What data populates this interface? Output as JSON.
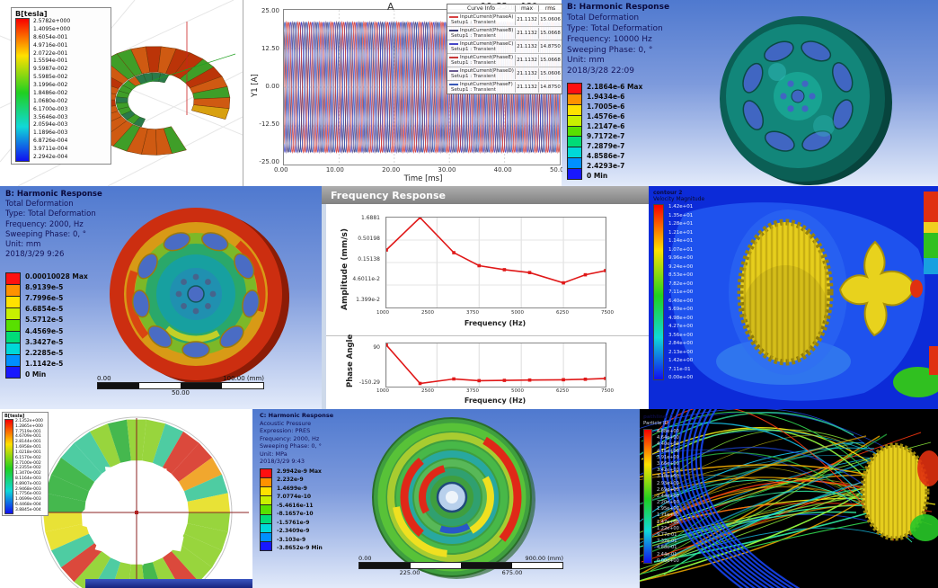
{
  "colors": {
    "ansys_bands": [
      "#ff1010",
      "#ff9100",
      "#ffe100",
      "#c8f000",
      "#58e000",
      "#00dc78",
      "#00d8d8",
      "#0090ff",
      "#1818ff"
    ],
    "stream_palette": [
      "#2ec84a",
      "#8ef03c",
      "#18c8f0",
      "#2050ff",
      "#ff3810",
      "#ffb400",
      "#f6f014",
      "#30e8a0"
    ],
    "viewport_top": "#4f79cf",
    "viewport_bottom": "#e2eafa",
    "cfd_background": "#0c2bd8"
  },
  "panels": {
    "maxwell_torus": {
      "legend_title": "B[tesla]",
      "legend_values": [
        "2.5782e+000",
        "1.4095e+000",
        "8.6054e-001",
        "4.9716e-001",
        "2.0722e-001",
        "1.5594e-001",
        "9.5987e-002",
        "5.5985e-002",
        "3.1996e-002",
        "1.8486e-002",
        "1.0680e-002",
        "6.1700e-003",
        "3.5646e-003",
        "2.0594e-003",
        "1.1896e-003",
        "6.8726e-004",
        "3.9711e-004",
        "2.2942e-004"
      ]
    },
    "current_plot": {
      "corner_label": "A",
      "title": "96v55nm180",
      "table_headers": [
        "Curve Info",
        "max",
        "rms"
      ],
      "rows": [
        {
          "name": "InputCurrent(PhaseA)",
          "setup": "Setup1 : Transient",
          "max": "21.1132",
          "rms": "15.0606"
        },
        {
          "name": "InputCurrent(PhaseB)",
          "setup": "Setup1 : Transient",
          "max": "21.1132",
          "rms": "15.0668"
        },
        {
          "name": "InputCurrent(PhaseC)",
          "setup": "Setup1 : Transient",
          "max": "21.1132",
          "rms": "14.8750"
        },
        {
          "name": "InputCurrent(PhaseE)",
          "setup": "Setup1 : Transient",
          "max": "21.1132",
          "rms": "15.0668"
        },
        {
          "name": "InputCurrent(PhaseD)",
          "setup": "Setup1 : Transient",
          "max": "21.1132",
          "rms": "15.0606"
        },
        {
          "name": "InputCurrent(PhaseF)",
          "setup": "Setup1 : Transient",
          "max": "21.1132",
          "rms": "14.8750"
        }
      ]
    },
    "harmonic_10000": {
      "header_lines": [
        "B: Harmonic Response",
        "Total Deformation",
        "Type: Total Deformation",
        "Frequency: 10000 Hz",
        "Sweeping Phase: 0, °",
        "Unit: mm",
        "2018/3/28 22:09"
      ],
      "legend_values": [
        "2.1864e-6 Max",
        "1.9434e-6",
        "1.7005e-6",
        "1.4576e-6",
        "1.2147e-6",
        "9.7172e-7",
        "7.2879e-7",
        "4.8586e-7",
        "2.4293e-7",
        "0 Min"
      ]
    },
    "harmonic_2000": {
      "header_lines": [
        "B: Harmonic Response",
        "Total Deformation",
        "Type: Total Deformation",
        "Frequency: 2000, Hz",
        "Sweeping Phase: 0, °",
        "Unit: mm",
        "2018/3/29 9:26"
      ],
      "legend_values": [
        "0.00010028 Max",
        "8.9139e-5",
        "7.7996e-5",
        "6.6854e-5",
        "5.5712e-5",
        "4.4569e-5",
        "3.3427e-5",
        "2.2285e-5",
        "1.1142e-5",
        "0 Min"
      ],
      "ruler_left": "0.00",
      "ruler_right": "100.00 (mm)",
      "ruler_mid": "50.00"
    },
    "freq_response": {
      "window_title": "Frequency Response"
    },
    "cfd_velocity": {
      "legend_title_lines": [
        "contour 2",
        "Velocity Magnitude"
      ],
      "legend_values": [
        "1.42e+01",
        "1.35e+01",
        "1.28e+01",
        "1.21e+01",
        "1.14e+01",
        "1.07e+01",
        "9.96e+00",
        "9.24e+00",
        "8.53e+00",
        "7.82e+00",
        "7.11e+00",
        "6.40e+00",
        "5.69e+00",
        "4.98e+00",
        "4.27e+00",
        "3.56e+00",
        "2.84e+00",
        "2.13e+00",
        "1.42e+00",
        "7.11e-01",
        "0.00e+00"
      ]
    },
    "maxwell_rotor": {
      "legend_title": "B[tesla]",
      "legend_values": [
        "2.1352e+000",
        "1.2865e+000",
        "7.7519e-001",
        "4.6709e-001",
        "2.8144e-001",
        "1.6958e-001",
        "1.0218e-001",
        "6.1570e-002",
        "3.7100e-002",
        "2.2355e-002",
        "1.3470e-002",
        "8.1164e-003",
        "4.8907e-003",
        "2.9468e-003",
        "1.7756e-003",
        "1.0699e-003",
        "6.4468e-004",
        "3.8845e-004"
      ]
    },
    "acoustic": {
      "header_lines": [
        "C: Harmonic Response",
        "Acoustic Pressure",
        "Expression: PRES",
        "Frequency: 2000, Hz",
        "Sweeping Phase: 0, °",
        "Unit: MPa",
        "2018/3/29 9:43"
      ],
      "legend_values": [
        "2.9942e-9 Max",
        "2.232e-9",
        "1.4699e-9",
        "7.0774e-10",
        "-5.4616e-11",
        "-8.1657e-10",
        "-1.5761e-9",
        "-2.3409e-9",
        "-3.103e-9",
        "-3.8652e-9 Min"
      ],
      "ruler_top_left": "0.00",
      "ruler_top_right": "900.00 (mm)",
      "ruler_bot_left": "225.00",
      "ruler_bot_right": "675.00"
    },
    "pathlines": {
      "legend_title_lines": [
        "pathlines 1",
        "Particle ID"
      ],
      "legend_values": [
        "4.88e+00",
        "4.64e+00",
        "4.40e+00",
        "4.15e+00",
        "3.91e+00",
        "3.66e+00",
        "3.42e+00",
        "3.18e+00",
        "2.93e+00",
        "2.69e+00",
        "2.44e+00",
        "2.20e+00",
        "1.95e+00",
        "1.71e+00",
        "1.47e+00",
        "1.22e+00",
        "9.77e-01",
        "7.32e-01",
        "4.88e-01",
        "2.44e-01",
        "0.00e+00"
      ]
    }
  },
  "chart_data": [
    {
      "type": "line",
      "name": "six_phase_input_currents",
      "xlabel": "Time [ms]",
      "ylabel": "Y1 [A]",
      "xticks": [
        "0.00",
        "10.00",
        "20.00",
        "30.00",
        "40.00",
        "50.00"
      ],
      "yticks": [
        "25.00",
        "12.50",
        "0.00",
        "-12.50",
        "-25.00"
      ],
      "x_range": [
        0,
        50
      ],
      "y_range": [
        -25,
        25
      ],
      "amplitude": 21.1132,
      "period_ms": 2,
      "series": [
        {
          "name": "InputCurrent(PhaseA)",
          "phase_deg": 0,
          "color": "#d84444"
        },
        {
          "name": "InputCurrent(PhaseB)",
          "phase_deg": 120,
          "color": "#3a3a7a"
        },
        {
          "name": "InputCurrent(PhaseC)",
          "phase_deg": 240,
          "color": "#4646c8"
        },
        {
          "name": "InputCurrent(PhaseD)",
          "phase_deg": 180,
          "color": "#6a5a92"
        },
        {
          "name": "InputCurrent(PhaseE)",
          "phase_deg": 300,
          "color": "#c83838"
        },
        {
          "name": "InputCurrent(PhaseF)",
          "phase_deg": 60,
          "color": "#3858b8"
        }
      ]
    },
    {
      "type": "line",
      "name": "amplitude_frequency_response",
      "ylabel": "Amplitude (mm/s)",
      "xlabel": "Frequency (Hz)",
      "yticks": [
        "1.6881",
        "0.50198",
        "0.15138",
        "4.6011e-2",
        "1.399e-2"
      ],
      "xticks": [
        "1000",
        "2500",
        "3750",
        "5000",
        "6250",
        "7500"
      ],
      "log_y": true,
      "x_range": [
        1000,
        7500
      ],
      "y_range": [
        0.01399,
        1.6881
      ],
      "color": "#e01818",
      "x": [
        1000,
        2000,
        3000,
        3750,
        4500,
        5250,
        6250,
        6900,
        7500
      ],
      "y": [
        0.3,
        1.6881,
        0.26,
        0.13,
        0.105,
        0.09,
        0.052,
        0.08,
        0.1
      ]
    },
    {
      "type": "line",
      "name": "phase_angle_response",
      "ylabel": "Phase Angle",
      "xlabel": "Frequency (Hz)",
      "yticks": [
        "90",
        "-150.29"
      ],
      "xticks": [
        "1000",
        "2500",
        "3750",
        "5000",
        "6250",
        "7500"
      ],
      "x_range": [
        1000,
        7500
      ],
      "y_range": [
        -170,
        100
      ],
      "color": "#e01818",
      "x": [
        1000,
        2000,
        3000,
        3750,
        4500,
        5250,
        6250,
        6900,
        7500
      ],
      "y": [
        90,
        -150.29,
        -122,
        -133,
        -131,
        -129,
        -127,
        -124,
        -119
      ]
    }
  ]
}
